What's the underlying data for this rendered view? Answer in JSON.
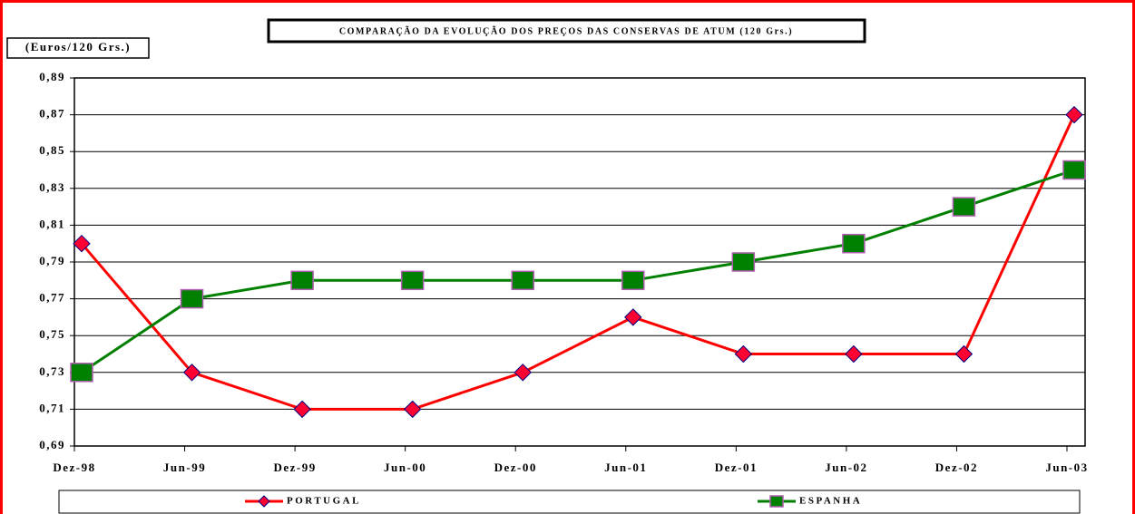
{
  "chart_data": {
    "type": "line",
    "title": "COMPARAÇÃO DA EVOLUÇÃO DOS PREÇOS DAS CONSERVAS DE ATUM (120 Grs.)",
    "y_label": "(Euros/120 Grs.)",
    "categories": [
      "Dez-98",
      "Jun-99",
      "Dez-99",
      "Jun-00",
      "Dez-00",
      "Jun-01",
      "Dez-01",
      "Jun-02",
      "Dez-02",
      "Jun-03"
    ],
    "series": [
      {
        "name": "PORTUGAL",
        "color": "#ff0000",
        "marker_color": "#ff0033",
        "marker": "diamond",
        "values": [
          0.8,
          0.73,
          0.71,
          0.71,
          0.73,
          0.76,
          0.74,
          0.74,
          0.74,
          0.87
        ]
      },
      {
        "name": "ESPANHA",
        "color": "#008000",
        "marker_color": "#008000",
        "marker": "square",
        "values": [
          0.73,
          0.77,
          0.78,
          0.78,
          0.78,
          0.78,
          0.79,
          0.8,
          0.82,
          0.84
        ]
      }
    ],
    "ylim": [
      0.69,
      0.89
    ],
    "yticks": [
      {
        "value": 0.69,
        "label": "0,69"
      },
      {
        "value": 0.71,
        "label": "0,71"
      },
      {
        "value": 0.73,
        "label": "0,73"
      },
      {
        "value": 0.75,
        "label": "0,75"
      },
      {
        "value": 0.77,
        "label": "0,77"
      },
      {
        "value": 0.79,
        "label": "0,79"
      },
      {
        "value": 0.81,
        "label": "0,81"
      },
      {
        "value": 0.83,
        "label": "0,83"
      },
      {
        "value": 0.85,
        "label": "0,85"
      },
      {
        "value": 0.87,
        "label": "0,87"
      },
      {
        "value": 0.89,
        "label": "0,89"
      }
    ],
    "grid": true,
    "legend": "bottom"
  }
}
